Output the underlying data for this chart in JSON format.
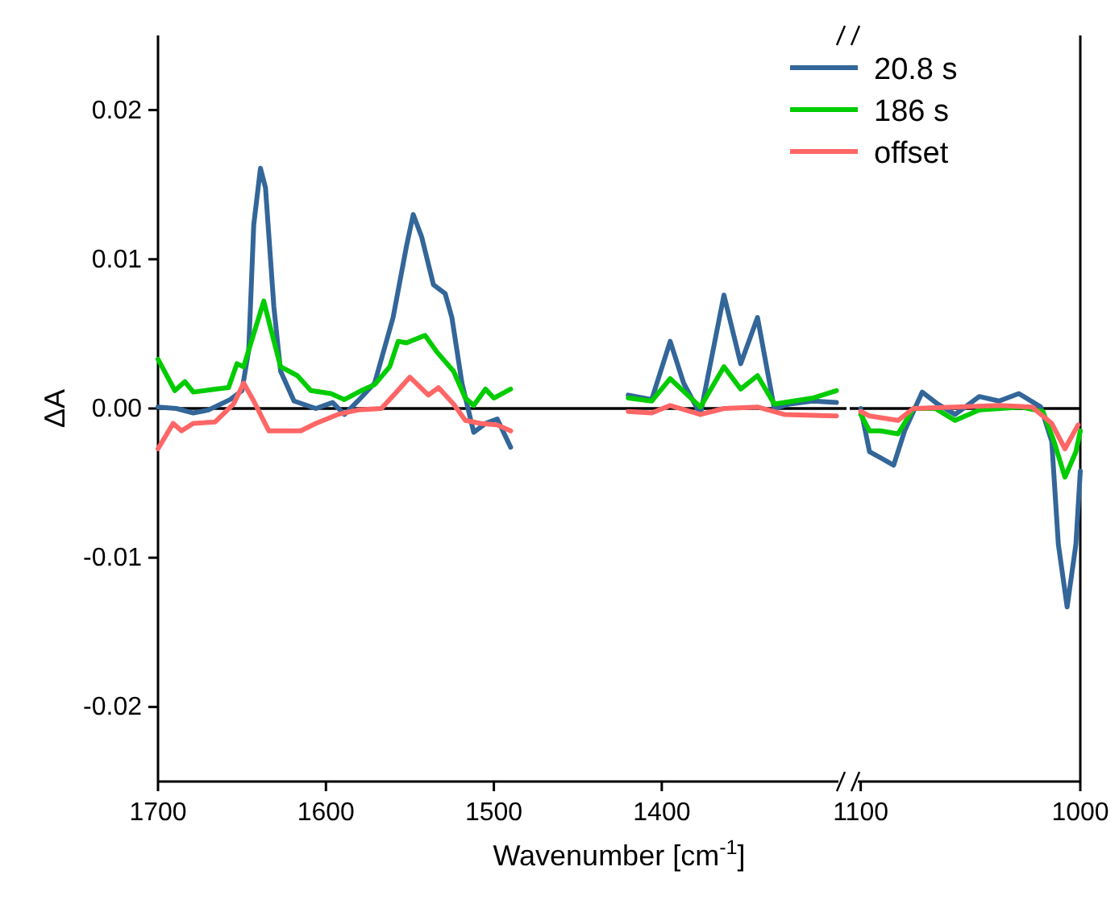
{
  "chart_data": [
    {
      "type": "line",
      "ylabel": "ΔA",
      "xlabel": "Wavenumber [cm$^{-1}$]",
      "xlim": [
        1700,
        1290
      ],
      "xticks": [
        1700,
        1600,
        1500,
        1400
      ],
      "ylim": [
        -0.025,
        0.025
      ],
      "yticks": [
        {
          "value": -0.02,
          "label": "-0.02"
        },
        {
          "value": -0.01,
          "label": "-0.01"
        },
        {
          "value": 0,
          "label": "0.00"
        },
        {
          "value": 0.01,
          "label": "0.01"
        },
        {
          "value": 0.02,
          "label": "0.02"
        }
      ],
      "ref_lines": [
        {
          "axis": "y",
          "value": 0,
          "color": "#000000"
        }
      ],
      "legend": false,
      "series": [
        {
          "color": "#336699",
          "x": [
            1700,
            1689,
            1679,
            1670,
            1657,
            1650,
            1646,
            1643,
            1639,
            1636,
            1631,
            1627,
            1619,
            1606,
            1596,
            1589,
            1581,
            1571,
            1560,
            1552,
            1548,
            1543,
            1536,
            1529,
            1525,
            1519,
            1512,
            1505,
            1498,
            1490
          ],
          "values": [
            0.0001,
            0,
            -0.0003,
            -0.0001,
            0.0006,
            0.0012,
            0.0039,
            0.0123,
            0.0161,
            0.0148,
            0.0068,
            0.0025,
            0.0005,
            0,
            0.0004,
            -0.0004,
            0.0005,
            0.0017,
            0.0061,
            0.0109,
            0.013,
            0.0115,
            0.0083,
            0.0077,
            0.0061,
            0.0017,
            -0.0016,
            -0.001,
            -0.0007,
            -0.0026
          ]
        },
        {
          "color": "#00cc00",
          "x": [
            1700,
            1690,
            1684,
            1679,
            1666,
            1658,
            1653,
            1649,
            1643,
            1637,
            1633,
            1627,
            1617,
            1609,
            1597,
            1589,
            1579,
            1571,
            1562,
            1557,
            1552,
            1541,
            1534,
            1524,
            1517,
            1512,
            1505,
            1500,
            1490
          ],
          "values": [
            0.0033,
            0.0012,
            0.0018,
            0.0011,
            0.0013,
            0.0014,
            0.003,
            0.0028,
            0.005,
            0.0072,
            0.0054,
            0.0028,
            0.0022,
            0.0012,
            0.001,
            0.0006,
            0.0012,
            0.0016,
            0.0028,
            0.0045,
            0.0044,
            0.0049,
            0.0038,
            0.0025,
            0.0007,
            0.0002,
            0.0013,
            0.0007,
            0.0013
          ]
        },
        {
          "color": "#ff6666",
          "x": [
            1700,
            1691,
            1686,
            1679,
            1666,
            1655,
            1649,
            1643,
            1634,
            1625,
            1615,
            1606,
            1593,
            1581,
            1567,
            1558,
            1550,
            1539,
            1533,
            1524,
            1517,
            1508,
            1498,
            1490
          ],
          "values": [
            -0.0027,
            -0.001,
            -0.0015,
            -0.001,
            -0.0009,
            0.0003,
            0.0017,
            0.0005,
            -0.0015,
            -0.0015,
            -0.0015,
            -0.001,
            -0.0004,
            -0.0001,
            0,
            0.0011,
            0.0021,
            0.0009,
            0.0014,
            0.0003,
            -0.0008,
            -0.001,
            -0.0011,
            -0.0015
          ]
        },
        {
          "color": "#336699",
          "x": [
            1420,
            1406,
            1395,
            1387,
            1377,
            1363,
            1353,
            1343,
            1333,
            1324,
            1310,
            1296
          ],
          "values": [
            0.0009,
            0.0006,
            0.0045,
            0.0017,
            -0.0004,
            0.0076,
            0.003,
            0.0061,
            0,
            0.0003,
            0.0005,
            0.0004
          ]
        },
        {
          "color": "#00cc00",
          "x": [
            1420,
            1406,
            1395,
            1377,
            1363,
            1353,
            1343,
            1333,
            1310,
            1296
          ],
          "values": [
            0.0007,
            0.0005,
            0.002,
            0.0001,
            0.0028,
            0.0013,
            0.0022,
            0.0003,
            0.0007,
            0.0012
          ]
        },
        {
          "color": "#ff6666",
          "x": [
            1420,
            1406,
            1395,
            1377,
            1363,
            1343,
            1327,
            1296
          ],
          "values": [
            -0.0002,
            -0.0003,
            0.0002,
            -0.0004,
            0,
            0.0001,
            -0.0004,
            -0.0005
          ]
        }
      ]
    },
    {
      "type": "line",
      "xlim": [
        1105,
        1000
      ],
      "xticks": [
        1100,
        1000
      ],
      "ylim": [
        -0.025,
        0.025
      ],
      "tick_labels": "x",
      "ref_lines": [
        {
          "axis": "y",
          "value": 0,
          "color": "#000000"
        }
      ],
      "legend": "top left",
      "series": [
        {
          "name": "20.8 s",
          "color": "#336699",
          "x": [
            1100,
            1096,
            1091,
            1085,
            1080,
            1072,
            1065,
            1057,
            1046,
            1037,
            1028,
            1018,
            1013,
            1010,
            1006,
            1002,
            1000
          ],
          "values": [
            0,
            -0.0029,
            -0.0033,
            -0.0038,
            -0.0015,
            0.0011,
            0.0003,
            -0.0004,
            0.0008,
            0.0005,
            0.001,
            0.0001,
            -0.0022,
            -0.0091,
            -0.0133,
            -0.0091,
            -0.0042
          ]
        },
        {
          "name": "186 s",
          "color": "#00cc00",
          "x": [
            1100,
            1096,
            1091,
            1083,
            1076,
            1066,
            1057,
            1046,
            1027,
            1017,
            1012,
            1007,
            1002,
            1000
          ],
          "values": [
            -0.0004,
            -0.0015,
            -0.0015,
            -0.0017,
            0,
            0,
            -0.0008,
            -0.0001,
            0.0001,
            -0.0002,
            -0.0022,
            -0.0046,
            -0.0029,
            -0.0015
          ]
        },
        {
          "name": "offset",
          "color": "#ff6666",
          "x": [
            1100,
            1096,
            1083,
            1076,
            1057,
            1037,
            1022,
            1013,
            1007,
            1001
          ],
          "values": [
            -0.0002,
            -0.0005,
            -0.0008,
            0,
            0.0001,
            0.0002,
            0.0001,
            -0.001,
            -0.0027,
            -0.0011
          ]
        }
      ]
    }
  ]
}
